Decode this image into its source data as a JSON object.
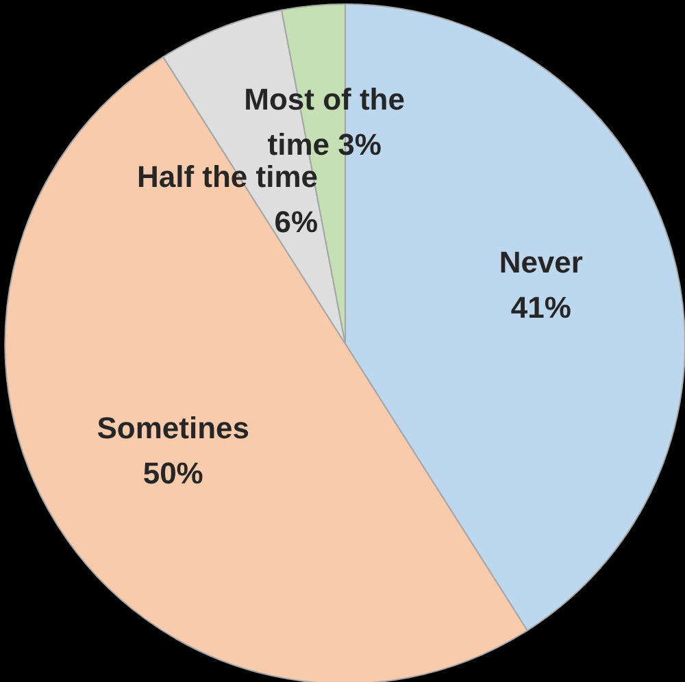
{
  "chart_data": {
    "type": "pie",
    "categories": [
      "Never",
      "Sometines",
      "Half the time",
      "Most of the time"
    ],
    "values": [
      41,
      50,
      6,
      3
    ],
    "colors": [
      "#bdd7ee",
      "#f8cbad",
      "#dedede",
      "#c5e0b4"
    ],
    "value_labels": [
      "41%",
      "50%",
      "6%",
      "3%"
    ]
  }
}
